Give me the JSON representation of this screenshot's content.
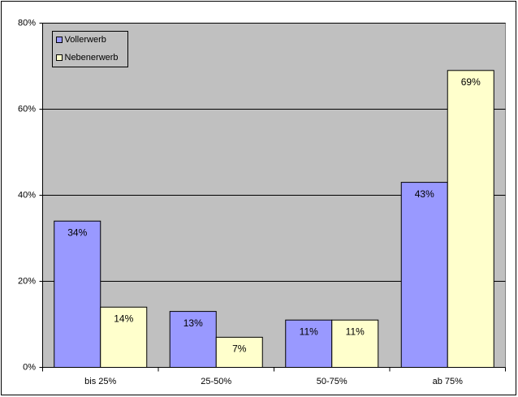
{
  "chart_data": {
    "type": "bar",
    "categories": [
      "bis 25%",
      "25-50%",
      "50-75%",
      "ab 75%"
    ],
    "series": [
      {
        "name": "Vollerwerb",
        "color": "#9999ff",
        "values": [
          34,
          13,
          11,
          43
        ],
        "value_labels": [
          "34%",
          "13%",
          "11%",
          "43%"
        ]
      },
      {
        "name": "Nebenerwerb",
        "color": "#ffffcc",
        "values": [
          14,
          7,
          11,
          69
        ],
        "value_labels": [
          "14%",
          "7%",
          "11%",
          "69%"
        ]
      }
    ],
    "ylim": [
      0,
      80
    ],
    "yticks": [
      {
        "value": 0,
        "label": "0%"
      },
      {
        "value": 20,
        "label": "20%"
      },
      {
        "value": 40,
        "label": "40%"
      },
      {
        "value": 60,
        "label": "60%"
      },
      {
        "value": 80,
        "label": "80%"
      }
    ],
    "grid": true,
    "legend": "top-left"
  }
}
